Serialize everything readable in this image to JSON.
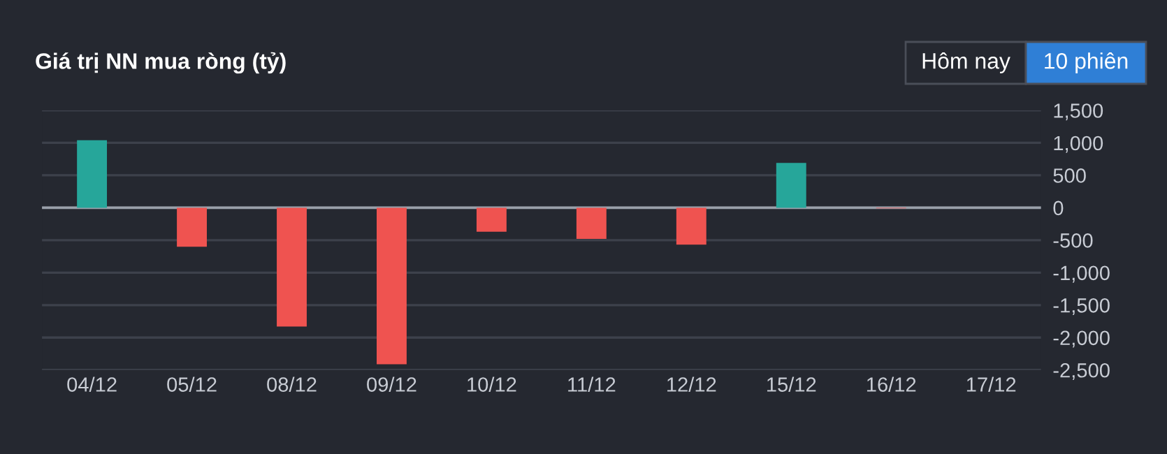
{
  "chart_data": {
    "type": "bar",
    "title": "Giá trị NN mua ròng (tỷ)",
    "annotations": [
      "Hôm nay",
      "10 phiên"
    ],
    "categories": [
      "04/12",
      "05/12",
      "08/12",
      "09/12",
      "10/12",
      "11/12",
      "12/12",
      "15/12",
      "16/12",
      "17/12"
    ],
    "values": [
      1040,
      -600,
      -1830,
      -2410,
      -370,
      -480,
      -570,
      690,
      -10,
      0
    ],
    "colors": [
      "#26a69a",
      "#ef5350",
      "#ef5350",
      "#ef5350",
      "#ef5350",
      "#ef5350",
      "#ef5350",
      "#26a69a",
      "#ef5350",
      "#ef5350"
    ],
    "ylim": [
      -2500,
      1500
    ],
    "yticks": [
      {
        "value": 1500,
        "label": "1,500"
      },
      {
        "value": 1000,
        "label": "1,000"
      },
      500,
      0,
      -500,
      {
        "value": -1000,
        "label": "-1,000"
      },
      {
        "value": -1500,
        "label": "-1,500"
      },
      {
        "value": -2000,
        "label": "-2,000"
      },
      {
        "value": -2500,
        "label": "-2,500"
      }
    ],
    "grid": "y",
    "legend": false,
    "ref_lines": [
      {
        "axis": "y",
        "value": 0,
        "color": "#9aa0aa"
      }
    ]
  }
}
